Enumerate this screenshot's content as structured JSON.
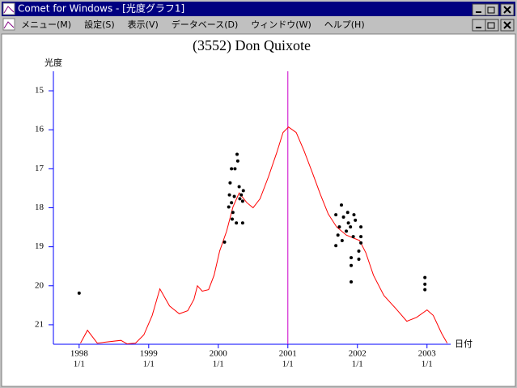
{
  "window": {
    "title": "Comet for Windows - [光度グラフ1]",
    "menu": [
      "メニュー(M)",
      "設定(S)",
      "表示(V)",
      "データベース(D)",
      "ウィンドウ(W)",
      "ヘルプ(H)"
    ]
  },
  "chart_data": {
    "type": "combo",
    "title": "(3552) Don Quixote",
    "y_label": "光度",
    "x_label": "日付",
    "xlim": [
      1997.63,
      2003.34
    ],
    "xticks": [
      1998,
      1999,
      2000,
      2001,
      2002,
      2003
    ],
    "xtick_sublabels": [
      "1/1",
      "1/1",
      "1/1",
      "1/1",
      "1/1",
      "1/1"
    ],
    "ylim": [
      21.5,
      14.5
    ],
    "yticks": [
      15,
      16,
      17,
      18,
      19,
      20,
      21
    ],
    "axis_color": "#0000ff",
    "vline": 2001,
    "vline_color": "#cc00cc",
    "series": [
      {
        "type": "line",
        "color": "#ff0000",
        "x": [
          1998.02,
          1998.12,
          1998.26,
          1998.6,
          1998.69,
          1998.81,
          1998.93,
          1999.05,
          1999.16,
          1999.3,
          1999.44,
          1999.56,
          1999.65,
          1999.7,
          1999.77,
          1999.86,
          1999.94,
          2000.02,
          2000.12,
          2000.21,
          2000.3,
          2000.41,
          2000.5,
          2000.6,
          2000.72,
          2000.84,
          2000.93,
          2001.01,
          2001.12,
          2001.23,
          2001.35,
          2001.47,
          2001.58,
          2001.7,
          2001.84,
          2001.95,
          2002.03,
          2002.12,
          2002.23,
          2002.38,
          2002.56,
          2002.71,
          2002.85,
          2003.0,
          2003.09,
          2003.21,
          2003.29
        ],
        "values": [
          21.47,
          21.14,
          21.47,
          21.4,
          21.49,
          21.47,
          21.26,
          20.76,
          20.08,
          20.52,
          20.72,
          20.64,
          20.35,
          20.0,
          20.14,
          20.1,
          19.73,
          19.11,
          18.6,
          17.98,
          17.62,
          17.87,
          18.0,
          17.77,
          17.21,
          16.59,
          16.07,
          15.93,
          16.07,
          16.53,
          17.09,
          17.67,
          18.16,
          18.49,
          18.7,
          18.78,
          18.84,
          19.15,
          19.73,
          20.25,
          20.6,
          20.91,
          20.81,
          20.62,
          20.76,
          21.22,
          21.47
        ]
      },
      {
        "type": "scatter",
        "color": "#000000",
        "x": [
          1998.0,
          2000.09,
          2000.15,
          2000.16,
          2000.17,
          2000.19,
          2000.2,
          2000.21,
          2000.23,
          2000.24,
          2000.26,
          2000.27,
          2000.28,
          2000.3,
          2000.31,
          2000.33,
          2000.35,
          2000.35,
          2000.36,
          2000.19,
          2001.69,
          2001.69,
          2001.72,
          2001.74,
          2001.77,
          2001.78,
          2001.8,
          2001.84,
          2001.86,
          2001.87,
          2001.9,
          2001.91,
          2001.91,
          2001.91,
          2001.94,
          2001.95,
          2001.97,
          2002.02,
          2002.02,
          2002.05,
          2002.05,
          2002.05,
          2002.97,
          2002.97,
          2002.97
        ],
        "values": [
          20.19,
          18.88,
          17.98,
          17.67,
          17.36,
          17.0,
          18.29,
          18.12,
          17.71,
          17.0,
          18.39,
          16.63,
          16.8,
          17.46,
          17.77,
          17.67,
          18.39,
          17.83,
          17.56,
          17.87,
          18.97,
          18.18,
          18.7,
          18.49,
          17.93,
          18.84,
          18.24,
          18.6,
          18.12,
          18.39,
          18.49,
          19.28,
          19.48,
          19.9,
          18.74,
          18.18,
          18.32,
          19.11,
          19.32,
          18.49,
          18.74,
          18.9,
          19.79,
          19.96,
          20.1
        ]
      }
    ]
  }
}
